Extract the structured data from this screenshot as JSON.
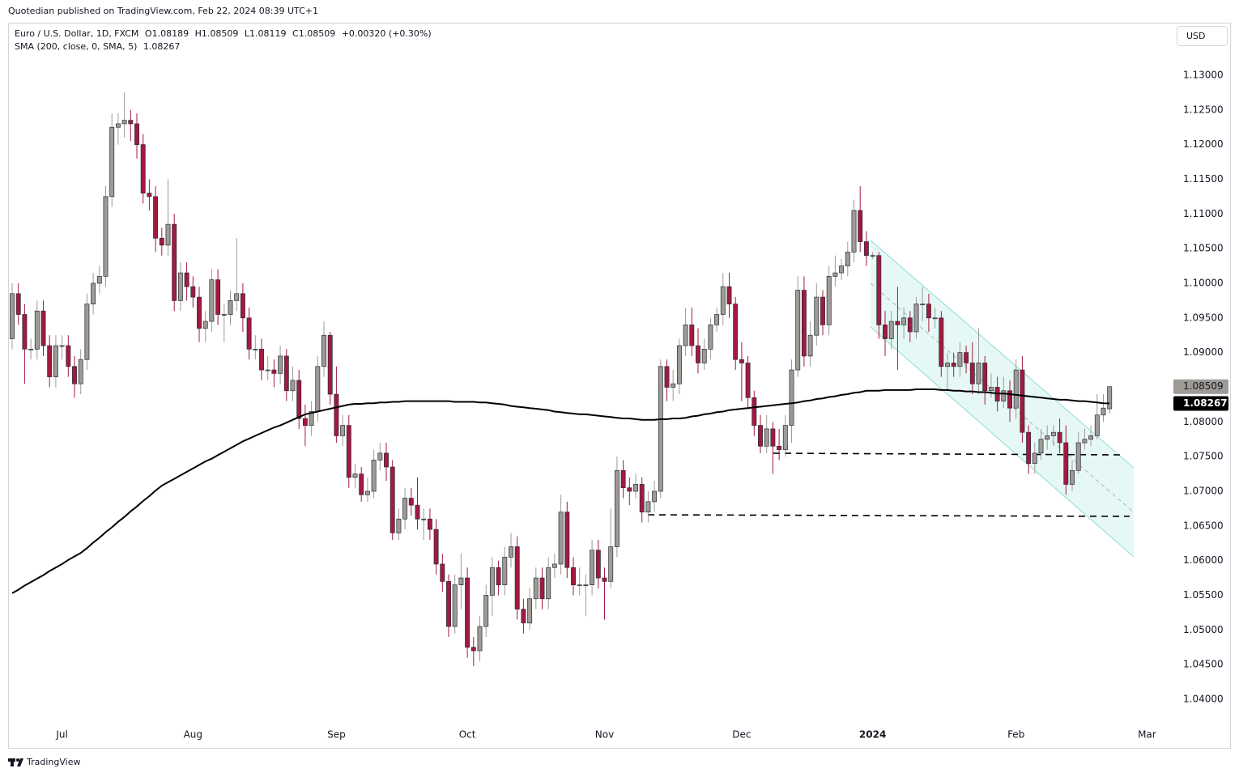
{
  "header": {
    "publisher": "Quotedian published on TradingView.com, Feb 22, 2024 08:39 UTC+1"
  },
  "chart_data": {
    "type": "candlestick",
    "symbol": "Euro / U.S. Dollar, 1D, FXCM",
    "ohlc_prefixes": [
      "O",
      "H",
      "L",
      "C"
    ],
    "change": "+0.00320 (+0.30%)",
    "currency": "USD",
    "up_color": "#9e9a95",
    "down_color": "#a3193f",
    "indicator": {
      "name": "SMA (200, close, 0, SMA, 5)",
      "color": "#000000",
      "values": [
        1.0553,
        1.0558,
        1.0564,
        1.0569,
        1.0574,
        1.0579,
        1.0585,
        1.059,
        1.0595,
        1.0601,
        1.0606,
        1.0611,
        1.0618,
        1.0626,
        1.0633,
        1.0641,
        1.0648,
        1.0656,
        1.0663,
        1.0671,
        1.0678,
        1.0686,
        1.0693,
        1.0701,
        1.0708,
        1.0713,
        1.0718,
        1.0723,
        1.0728,
        1.0733,
        1.0738,
        1.0743,
        1.0747,
        1.0752,
        1.0757,
        1.0762,
        1.0767,
        1.0772,
        1.0776,
        1.078,
        1.0784,
        1.0788,
        1.0792,
        1.0795,
        1.0799,
        1.0803,
        1.0807,
        1.0811,
        1.0813,
        1.0815,
        1.0817,
        1.0819,
        1.0821,
        1.0823,
        1.0825,
        1.0826,
        1.0826,
        1.0827,
        1.0827,
        1.0828,
        1.0828,
        1.0829,
        1.0829,
        1.083,
        1.083,
        1.083,
        1.083,
        1.083,
        1.083,
        1.083,
        1.083,
        1.0829,
        1.0829,
        1.0829,
        1.0829,
        1.0828,
        1.0828,
        1.0827,
        1.0826,
        1.0825,
        1.0823,
        1.0822,
        1.0821,
        1.082,
        1.0819,
        1.0818,
        1.0817,
        1.0815,
        1.0814,
        1.0813,
        1.0812,
        1.0811,
        1.0811,
        1.081,
        1.0809,
        1.0808,
        1.0807,
        1.0806,
        1.0805,
        1.0805,
        1.0804,
        1.0803,
        1.0803,
        1.0803,
        1.0804,
        1.0804,
        1.0805,
        1.0805,
        1.0806,
        1.0808,
        1.0809,
        1.0811,
        1.0812,
        1.0814,
        1.0815,
        1.0817,
        1.0818,
        1.0819,
        1.082,
        1.0821,
        1.0822,
        1.0823,
        1.0824,
        1.0825,
        1.0826,
        1.0827,
        1.0828,
        1.083,
        1.0831,
        1.0833,
        1.0834,
        1.0836,
        1.0837,
        1.0839,
        1.084,
        1.0842,
        1.0843,
        1.0845,
        1.0845,
        1.0845,
        1.0846,
        1.0846,
        1.0846,
        1.0846,
        1.0846,
        1.0847,
        1.0847,
        1.0847,
        1.0847,
        1.0846,
        1.0846,
        1.0845,
        1.0845,
        1.0844,
        1.0844,
        1.0843,
        1.0843,
        1.0842,
        1.0841,
        1.0841,
        1.084,
        1.0839,
        1.0838,
        1.0837,
        1.0836,
        1.0835,
        1.0834,
        1.0833,
        1.0832,
        1.0832,
        1.0831,
        1.083,
        1.083,
        1.0829,
        1.0828,
        1.0827,
        1.08267,
        null,
        null,
        null,
        null,
        null,
        null
      ]
    },
    "categories": [
      null,
      null,
      null,
      null,
      null,
      null,
      null,
      null,
      "Jul",
      null,
      null,
      null,
      null,
      null,
      null,
      null,
      null,
      null,
      null,
      null,
      null,
      null,
      null,
      null,
      null,
      null,
      null,
      null,
      null,
      "Aug",
      null,
      null,
      null,
      null,
      null,
      null,
      null,
      null,
      null,
      null,
      null,
      null,
      null,
      null,
      null,
      null,
      null,
      null,
      null,
      null,
      null,
      null,
      "Sep",
      null,
      null,
      null,
      null,
      null,
      null,
      null,
      null,
      null,
      null,
      null,
      null,
      null,
      null,
      null,
      null,
      null,
      null,
      null,
      null,
      "Oct",
      null,
      null,
      null,
      null,
      null,
      null,
      null,
      null,
      null,
      null,
      null,
      null,
      null,
      null,
      null,
      null,
      null,
      null,
      null,
      null,
      null,
      "Nov",
      null,
      null,
      null,
      null,
      null,
      null,
      null,
      null,
      null,
      null,
      null,
      null,
      null,
      null,
      null,
      null,
      null,
      null,
      null,
      null,
      null,
      "Dec",
      null,
      null,
      null,
      null,
      null,
      null,
      null,
      null,
      null,
      null,
      null,
      null,
      null,
      null,
      null,
      null,
      null,
      null,
      null,
      null,
      "2024",
      null,
      null,
      null,
      null,
      null,
      null,
      null,
      null,
      null,
      null,
      null,
      null,
      null,
      null,
      null,
      null,
      null,
      null,
      null,
      null,
      null,
      null,
      "Feb",
      null,
      null,
      null,
      null,
      null,
      null,
      null,
      null,
      null,
      null,
      null,
      null,
      null,
      null,
      null,
      null,
      null,
      null,
      null,
      null,
      "Mar"
    ],
    "open": [
      1.092,
      1.0985,
      1.0955,
      1.0905,
      1.0905,
      1.096,
      1.091,
      1.0865,
      1.091,
      1.091,
      1.088,
      1.0855,
      1.089,
      1.097,
      1.1,
      1.101,
      1.1125,
      1.1225,
      1.123,
      1.1235,
      1.123,
      1.12,
      1.113,
      1.1125,
      1.1065,
      1.1055,
      1.1085,
      1.0975,
      1.1015,
      1.0995,
      1.098,
      1.0935,
      1.0945,
      1.1005,
      1.0955,
      1.0955,
      1.0975,
      1.0985,
      1.095,
      1.0905,
      1.0905,
      1.0875,
      1.0875,
      1.087,
      1.0895,
      1.0845,
      1.086,
      1.0805,
      1.0795,
      1.0815,
      1.088,
      1.0925,
      1.084,
      1.078,
      1.0795,
      1.072,
      1.0725,
      1.0695,
      1.07,
      1.0745,
      1.0755,
      1.0735,
      1.064,
      1.066,
      1.069,
      1.068,
      1.066,
      1.066,
      1.0645,
      1.0595,
      1.057,
      1.0505,
      1.0565,
      1.0575,
      1.0475,
      1.047,
      1.0505,
      1.055,
      1.059,
      1.0565,
      1.0605,
      1.062,
      1.053,
      1.051,
      1.0545,
      1.0575,
      1.0545,
      1.059,
      1.0595,
      1.067,
      1.059,
      1.0565,
      1.0565,
      1.0565,
      1.0615,
      1.0575,
      1.057,
      1.062,
      1.073,
      1.0705,
      1.07,
      1.071,
      1.067,
      1.0685,
      1.07,
      1.088,
      1.085,
      1.0855,
      1.091,
      1.094,
      1.091,
      1.0885,
      1.0905,
      1.094,
      1.0955,
      1.0995,
      1.097,
      1.089,
      1.0885,
      1.0835,
      1.0795,
      1.0765,
      1.079,
      1.0765,
      1.076,
      1.0795,
      1.0875,
      1.099,
      1.0895,
      1.0925,
      1.098,
      1.094,
      1.101,
      1.1015,
      1.1025,
      1.1045,
      1.1105,
      1.106,
      1.104,
      1.104,
      1.094,
      1.092,
      1.0945,
      1.094,
      1.095,
      1.093,
      1.097,
      1.097,
      1.095,
      1.095,
      1.088,
      1.0885,
      1.088,
      1.09,
      1.0885,
      1.0855,
      1.0885,
      1.0845,
      1.085,
      1.083,
      1.0845,
      1.082,
      1.0875,
      1.0785,
      1.074,
      1.0755,
      1.0775,
      1.078,
      1.0785,
      1.077,
      1.071,
      1.073,
      1.077,
      1.0775,
      1.078,
      1.081,
      1.08189,
      null,
      null,
      null,
      null,
      null,
      null
    ],
    "high": [
      1.1,
      1.1,
      1.097,
      1.092,
      1.0975,
      1.0975,
      1.0925,
      1.0925,
      1.0925,
      1.0925,
      1.0895,
      1.0905,
      1.0985,
      1.1015,
      1.1025,
      1.114,
      1.1245,
      1.1245,
      1.1275,
      1.125,
      1.1245,
      1.1215,
      1.115,
      1.114,
      1.108,
      1.115,
      1.11,
      1.103,
      1.103,
      1.101,
      1.0995,
      1.096,
      1.102,
      1.102,
      1.097,
      1.099,
      1.1065,
      1.1,
      1.0965,
      1.0925,
      1.092,
      1.0895,
      1.089,
      1.091,
      1.0905,
      1.088,
      1.0875,
      1.0825,
      1.083,
      1.0895,
      1.0945,
      1.093,
      1.088,
      1.081,
      1.081,
      1.074,
      1.0735,
      1.072,
      1.076,
      1.077,
      1.077,
      1.0745,
      1.0675,
      1.0705,
      1.0705,
      1.072,
      1.0675,
      1.0675,
      1.066,
      1.061,
      1.058,
      1.058,
      1.061,
      1.059,
      1.049,
      1.052,
      1.0565,
      1.0605,
      1.06,
      1.062,
      1.064,
      1.0635,
      1.0545,
      1.056,
      1.059,
      1.059,
      1.0605,
      1.061,
      1.0695,
      1.0685,
      1.0605,
      1.059,
      1.058,
      1.063,
      1.063,
      1.059,
      1.0675,
      1.075,
      1.0745,
      1.072,
      1.0725,
      1.072,
      1.07,
      1.0715,
      1.089,
      1.089,
      1.0875,
      1.092,
      1.0965,
      1.0965,
      1.0935,
      1.092,
      1.095,
      1.0965,
      1.1015,
      1.1015,
      1.098,
      1.0915,
      1.0895,
      1.0845,
      1.081,
      1.081,
      1.08,
      1.079,
      1.081,
      1.089,
      1.101,
      1.101,
      1.0945,
      1.1,
      1.099,
      1.1025,
      1.104,
      1.1035,
      1.106,
      1.112,
      1.114,
      1.1075,
      1.1045,
      1.1045,
      1.096,
      1.096,
      1.0995,
      1.0965,
      1.096,
      1.098,
      1.0995,
      1.0985,
      1.0965,
      1.096,
      1.09,
      1.09,
      1.0915,
      1.091,
      1.0915,
      1.0935,
      1.0895,
      1.087,
      1.0865,
      1.0865,
      1.086,
      1.089,
      1.0895,
      1.0795,
      1.077,
      1.079,
      1.0795,
      1.0795,
      1.0805,
      1.0795,
      1.0745,
      1.0785,
      1.079,
      1.0795,
      1.084,
      1.084,
      1.08509,
      null,
      null,
      null,
      null,
      null,
      null
    ],
    "low": [
      1.0905,
      1.094,
      1.0855,
      1.089,
      1.089,
      1.0895,
      1.085,
      1.085,
      1.089,
      1.0865,
      1.0835,
      1.084,
      1.0875,
      1.0955,
      1.0985,
      1.0995,
      1.111,
      1.12,
      1.121,
      1.1205,
      1.118,
      1.1115,
      1.1105,
      1.1045,
      1.104,
      1.104,
      1.096,
      1.096,
      1.0975,
      1.0965,
      1.0915,
      1.0915,
      1.093,
      1.094,
      1.0915,
      1.094,
      1.096,
      1.093,
      1.089,
      1.089,
      1.086,
      1.086,
      1.085,
      1.0855,
      1.083,
      1.083,
      1.079,
      1.0765,
      1.078,
      1.08,
      1.0865,
      1.0825,
      1.077,
      1.0765,
      1.0705,
      1.0705,
      1.0685,
      1.0685,
      1.069,
      1.073,
      1.0715,
      1.063,
      1.063,
      1.0645,
      1.0665,
      1.0645,
      1.063,
      1.063,
      1.058,
      1.0555,
      1.049,
      1.0495,
      1.053,
      1.046,
      1.0448,
      1.0455,
      1.049,
      1.052,
      1.055,
      1.055,
      1.059,
      1.0515,
      1.0495,
      1.05,
      1.053,
      1.053,
      1.053,
      1.0575,
      1.058,
      1.0575,
      1.055,
      1.055,
      1.052,
      1.055,
      1.056,
      1.0515,
      1.056,
      1.0605,
      1.069,
      1.068,
      1.069,
      1.0655,
      1.0655,
      1.067,
      1.069,
      1.083,
      1.083,
      1.084,
      1.0895,
      1.0895,
      1.087,
      1.0875,
      1.089,
      1.093,
      1.094,
      1.095,
      1.0875,
      1.083,
      1.082,
      1.078,
      1.0755,
      1.0755,
      1.0725,
      1.0745,
      1.075,
      1.077,
      1.0865,
      1.088,
      1.088,
      1.091,
      1.0925,
      1.0925,
      1.0995,
      1.1005,
      1.101,
      1.103,
      1.1045,
      1.1025,
      1.1035,
      1.092,
      1.0895,
      1.0905,
      1.0875,
      1.092,
      1.0915,
      1.092,
      1.0945,
      1.093,
      1.0935,
      1.0865,
      1.0845,
      1.0865,
      1.0865,
      1.087,
      1.084,
      1.084,
      1.0825,
      1.0835,
      1.0815,
      1.082,
      1.08,
      1.0805,
      1.077,
      1.0725,
      1.0725,
      1.0745,
      1.076,
      1.0765,
      1.0755,
      1.0695,
      1.07,
      1.0725,
      1.076,
      1.0765,
      1.0775,
      1.08,
      1.08119,
      null,
      null,
      null,
      null,
      null,
      null
    ],
    "close": [
      1.0985,
      1.0955,
      1.0905,
      1.0905,
      1.096,
      1.091,
      1.0865,
      1.091,
      1.091,
      1.088,
      1.0855,
      1.089,
      1.097,
      1.1,
      1.101,
      1.1125,
      1.1225,
      1.123,
      1.1235,
      1.123,
      1.12,
      1.113,
      1.1125,
      1.1065,
      1.1055,
      1.1085,
      1.0975,
      1.1015,
      1.0995,
      1.098,
      1.0935,
      1.0945,
      1.1005,
      1.0955,
      1.0955,
      1.0975,
      1.0985,
      1.095,
      1.0905,
      1.0905,
      1.0875,
      1.0875,
      1.087,
      1.0895,
      1.0845,
      1.086,
      1.0805,
      1.0795,
      1.0815,
      1.088,
      1.0925,
      1.084,
      1.078,
      1.0795,
      1.072,
      1.0725,
      1.0695,
      1.07,
      1.0745,
      1.0755,
      1.0735,
      1.064,
      1.066,
      1.069,
      1.068,
      1.066,
      1.066,
      1.0645,
      1.0595,
      1.057,
      1.0505,
      1.0565,
      1.0575,
      1.0475,
      1.047,
      1.0505,
      1.055,
      1.059,
      1.0565,
      1.0605,
      1.062,
      1.053,
      1.051,
      1.0545,
      1.0575,
      1.0545,
      1.059,
      1.0595,
      1.067,
      1.059,
      1.0565,
      1.0565,
      1.0565,
      1.0615,
      1.0575,
      1.057,
      1.062,
      1.073,
      1.0705,
      1.07,
      1.071,
      1.067,
      1.0685,
      1.07,
      1.088,
      1.085,
      1.0855,
      1.091,
      1.094,
      1.091,
      1.0885,
      1.0905,
      1.094,
      1.0955,
      1.0995,
      1.097,
      1.089,
      1.0885,
      1.0835,
      1.0795,
      1.0765,
      1.079,
      1.0765,
      1.076,
      1.0795,
      1.0875,
      1.099,
      1.0895,
      1.0925,
      1.098,
      1.094,
      1.101,
      1.1015,
      1.1025,
      1.1045,
      1.1105,
      1.106,
      1.104,
      1.104,
      1.094,
      1.092,
      1.0945,
      1.094,
      1.095,
      1.093,
      1.097,
      1.097,
      1.095,
      1.095,
      1.088,
      1.0885,
      1.088,
      1.09,
      1.0885,
      1.0855,
      1.0885,
      1.0845,
      1.085,
      1.083,
      1.0845,
      1.082,
      1.0875,
      1.0785,
      1.074,
      1.0755,
      1.0775,
      1.078,
      1.0785,
      1.077,
      1.071,
      1.073,
      1.077,
      1.0775,
      1.078,
      1.081,
      1.082,
      1.08509,
      null,
      null,
      null,
      null,
      null,
      null
    ],
    "ylim": [
      1.03638,
      1.13735
    ],
    "yticks": [
      {
        "value": 1.04,
        "label": "1.04000"
      },
      {
        "value": 1.045,
        "label": "1.04500"
      },
      {
        "value": 1.05,
        "label": "1.05000"
      },
      {
        "value": 1.055,
        "label": "1.05500"
      },
      {
        "value": 1.06,
        "label": "1.06000"
      },
      {
        "value": 1.065,
        "label": "1.06500"
      },
      {
        "value": 1.07,
        "label": "1.07000"
      },
      {
        "value": 1.075,
        "label": "1.07500"
      },
      {
        "value": 1.08,
        "label": "1.08000"
      },
      {
        "value": 1.085,
        "label": "1.08500"
      },
      {
        "value": 1.09,
        "label": "1.09000"
      },
      {
        "value": 1.095,
        "label": "1.09500"
      },
      {
        "value": 1.1,
        "label": "1.10000"
      },
      {
        "value": 1.105,
        "label": "1.10500"
      },
      {
        "value": 1.11,
        "label": "1.11000"
      },
      {
        "value": 1.115,
        "label": "1.11500"
      },
      {
        "value": 1.12,
        "label": "1.12000"
      },
      {
        "value": 1.125,
        "label": "1.12500"
      },
      {
        "value": 1.13,
        "label": "1.13000"
      }
    ],
    "grid": false
  },
  "footer": {
    "brand": "TradingView"
  }
}
